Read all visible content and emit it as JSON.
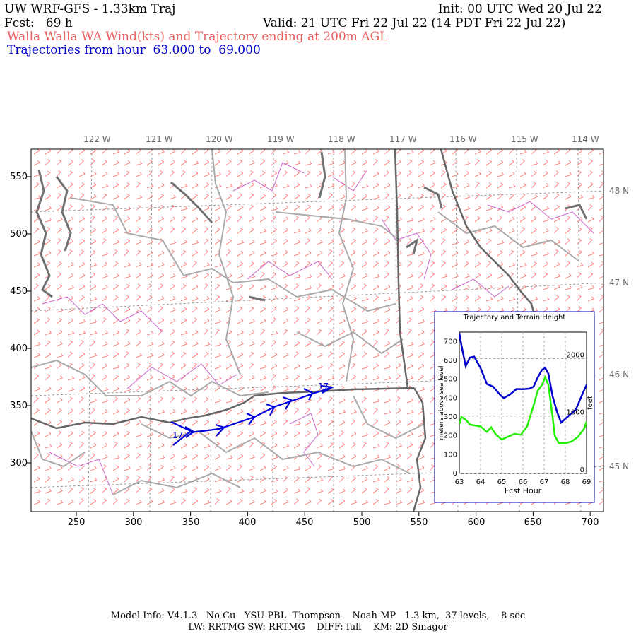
{
  "header": {
    "model": "UW WRF-GFS - 1.33km Traj",
    "init": "Init: 00 UTC Wed 20 Jul 22",
    "fcst": "Fcst:   69 h",
    "valid": "Valid: 21 UTC Fri 22 Jul 22 (14 PDT Fri 22 Jul 22)",
    "subtitle": "Walla Walla WA Wind(kts) and Trajectory ending at 200m AGL",
    "trajectories": "Trajectories from hour  63.000 to  69.000"
  },
  "map": {
    "lon_labels": [
      "122 W",
      "121 W",
      "120 W",
      "119 W",
      "118 W",
      "117 W",
      "116 W",
      "115 W",
      "114 W"
    ],
    "lat_labels": [
      "48 N",
      "47 N",
      "46 N",
      "45 N"
    ],
    "x_ticks": [
      "250",
      "300",
      "350",
      "400",
      "450",
      "500",
      "550",
      "600",
      "650",
      "700"
    ],
    "y_ticks": [
      "550",
      "500",
      "450",
      "400",
      "350",
      "300"
    ],
    "traj_labels": [
      "17",
      "17"
    ],
    "colors": {
      "trajectory": "#0000dd",
      "coast": "#666666",
      "borders": "#aaaaaa",
      "counties": "#cc66cc",
      "barbs": "#ff6666"
    }
  },
  "inset": {
    "title": "Trajectory and Terrain Height",
    "xlabel": "Fcst Hour",
    "ylabel_left": "meters above sea level",
    "ylabel_right": "feet",
    "x_ticks": [
      "63",
      "64",
      "65",
      "66",
      "67",
      "68",
      "69"
    ],
    "y_ticks": [
      "0",
      "100",
      "200",
      "300",
      "400",
      "500",
      "600",
      "700"
    ],
    "ft_ticks": [
      "0",
      "1000",
      "2000"
    ]
  },
  "chart_data": {
    "type": "line",
    "title": "Trajectory and Terrain Height",
    "xlabel": "Fcst Hour",
    "ylabel": "meters above sea level",
    "xlim": [
      63,
      69
    ],
    "ylim": [
      0,
      750
    ],
    "series": [
      {
        "color": "#0000cc",
        "x": [
          63,
          63.1,
          63.3,
          63.5,
          63.7,
          64,
          64.3,
          64.6,
          64.9,
          65.1,
          65.4,
          65.7,
          66,
          66.3,
          66.5,
          66.7,
          66.9,
          67.05,
          67.2,
          67.4,
          67.6,
          67.8,
          68,
          68.2,
          68.5,
          68.8,
          69
        ],
        "y": [
          745,
          680,
          570,
          615,
          620,
          560,
          475,
          460,
          420,
          400,
          420,
          448,
          447,
          450,
          460,
          510,
          550,
          560,
          530,
          410,
          330,
          270,
          290,
          310,
          340,
          420,
          470
        ]
      },
      {
        "color": "#22ee00",
        "x": [
          63,
          63.1,
          63.3,
          63.5,
          63.7,
          64,
          64.3,
          64.5,
          64.7,
          65,
          65.3,
          65.6,
          65.9,
          66.2,
          66.5,
          66.7,
          66.9,
          67.05,
          67.2,
          67.4,
          67.5,
          67.7,
          68,
          68.3,
          68.6,
          68.9,
          69
        ],
        "y": [
          260,
          300,
          285,
          260,
          255,
          250,
          220,
          245,
          210,
          180,
          195,
          210,
          205,
          250,
          360,
          440,
          470,
          510,
          470,
          300,
          200,
          160,
          160,
          170,
          195,
          240,
          275
        ]
      }
    ]
  },
  "footer": {
    "line1": "Model Info: V4.1.3   No Cu   YSU PBL  Thompson    Noah-MP   1.3 km,  37 levels,    8 sec",
    "line2": "LW: RRTMG SW: RRTMG    DIFF: full    KM: 2D Smagor"
  }
}
